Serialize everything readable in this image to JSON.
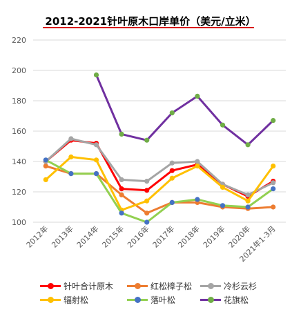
{
  "chart_data": {
    "type": "line",
    "title": "2012-2021针叶原木口岸单价（美元/立米）",
    "categories": [
      "2012年",
      "2013年",
      "2014年",
      "2015年",
      "2016年",
      "2017年",
      "2018年",
      "2019年",
      "2020年",
      "2021年1-3月"
    ],
    "ylim": [
      100,
      220
    ],
    "yticks": [
      100,
      120,
      140,
      160,
      180,
      200,
      220
    ],
    "grid": true,
    "legend_position": "bottom",
    "series": [
      {
        "name": "针叶合计原木",
        "color": "#ff0000",
        "values": [
          140,
          154,
          152,
          122,
          121,
          134,
          138,
          125,
          117,
          127
        ]
      },
      {
        "name": "红松樟子松",
        "color": "#ed7d31",
        "values": [
          137,
          132,
          132,
          118,
          106,
          113,
          113,
          110,
          109,
          110
        ]
      },
      {
        "name": "冷杉云杉",
        "color": "#a5a5a5",
        "values": [
          140,
          155,
          151,
          128,
          127,
          139,
          140,
          125,
          118,
          126
        ]
      },
      {
        "name": "辐射松",
        "color": "#ffc000",
        "values": [
          128,
          143,
          141,
          108,
          114,
          129,
          137,
          123,
          114,
          137
        ]
      },
      {
        "name": "落叶松",
        "color": "#92d050",
        "marker": "#4472c4",
        "values": [
          141,
          132,
          132,
          106,
          100,
          113,
          115,
          111,
          110,
          122
        ]
      },
      {
        "name": "花旗松",
        "color": "#7030a0",
        "marker": "#70ad47",
        "values": [
          null,
          null,
          197,
          158,
          154,
          172,
          183,
          164,
          151,
          167
        ]
      }
    ]
  }
}
